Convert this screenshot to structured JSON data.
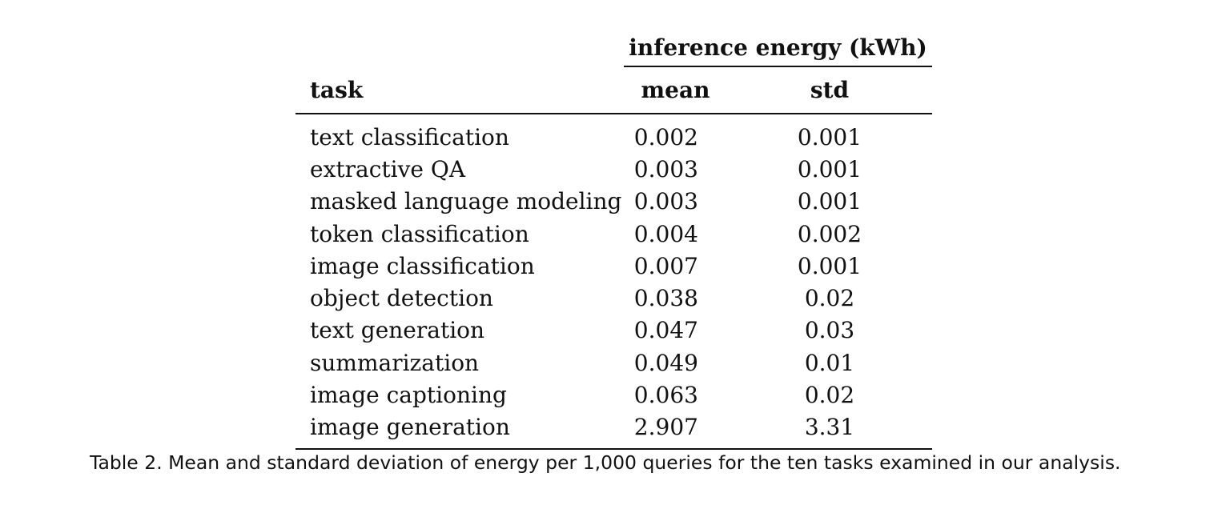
{
  "table": {
    "group_header": "inference energy (kWh)",
    "columns": {
      "task": "task",
      "mean": "mean",
      "std": "std"
    },
    "rows": [
      {
        "task": "text classification",
        "mean": "0.002",
        "std": "0.001"
      },
      {
        "task": "extractive QA",
        "mean": "0.003",
        "std": "0.001"
      },
      {
        "task": "masked language modeling",
        "mean": "0.003",
        "std": "0.001"
      },
      {
        "task": "token classification",
        "mean": "0.004",
        "std": "0.002"
      },
      {
        "task": "image classification",
        "mean": "0.007",
        "std": "0.001"
      },
      {
        "task": "object detection",
        "mean": "0.038",
        "std": "0.02"
      },
      {
        "task": "text generation",
        "mean": "0.047",
        "std": "0.03"
      },
      {
        "task": "summarization",
        "mean": "0.049",
        "std": "0.01"
      },
      {
        "task": "image captioning",
        "mean": "0.063",
        "std": "0.02"
      },
      {
        "task": "image generation",
        "mean": "2.907",
        "std": "3.31"
      }
    ]
  },
  "caption": "Table 2.  Mean and standard deviation of energy per 1,000 queries for the ten tasks examined in our analysis."
}
